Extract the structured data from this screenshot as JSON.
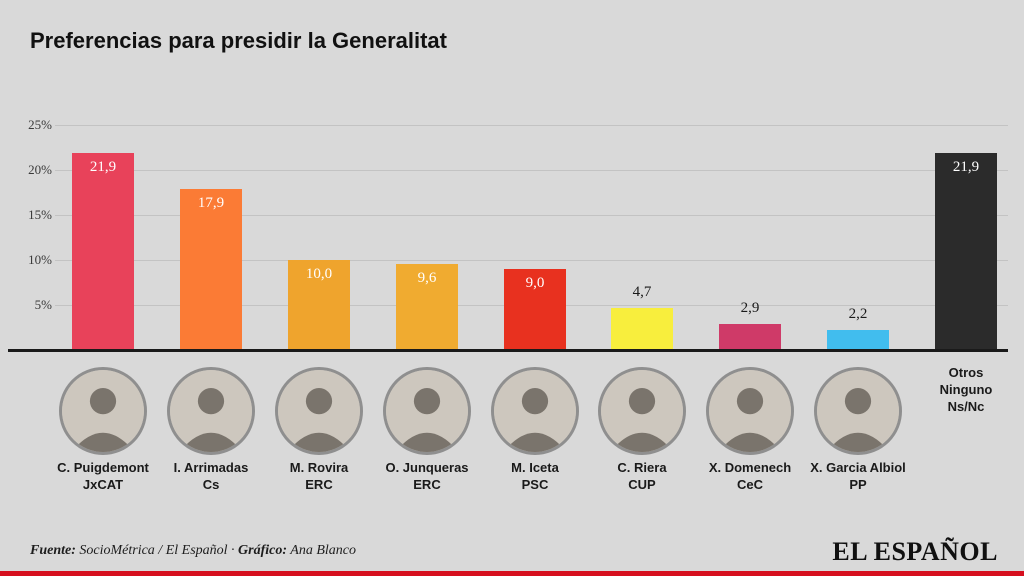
{
  "title": "Preferencias para presidir la Generalitat",
  "footer": {
    "source_label": "Fuente:",
    "source_rest": " SocioMétrica / El Español · ",
    "credit_label": "Gráfico:",
    "credit_rest": " Ana Blanco",
    "logo": "EL ESPAÑOL"
  },
  "colors": {
    "background": "#d9d9d9",
    "gridline": "#c3c3c3",
    "axis_line": "#1a1a1a",
    "value_label_light": "#ffffff",
    "value_label_dark": "#1a1a1a",
    "accent_red_strip": "#d60f1e",
    "avatar_ring": "#8f8f8f"
  },
  "chart_data": {
    "type": "bar",
    "title": "Preferencias para presidir la Generalitat",
    "xlabel": "",
    "ylabel": "",
    "ylim": [
      0,
      25
    ],
    "yticks": [
      5,
      10,
      15,
      20,
      25
    ],
    "ytick_labels": [
      "5%",
      "10%",
      "15%",
      "20%",
      "25%"
    ],
    "grid": true,
    "legend": false,
    "categories": [
      "C. Puigdemont JxCAT",
      "I. Arrimadas Cs",
      "M. Rovira ERC",
      "O. Junqueras ERC",
      "M. Iceta PSC",
      "C. Riera CUP",
      "X. Domenech CeC",
      "X. Garcia Albiol PP",
      "Otros Ninguno Ns/Nc"
    ],
    "values": [
      21.9,
      17.9,
      10.0,
      9.6,
      9.0,
      4.7,
      2.9,
      2.2,
      21.9
    ],
    "items": [
      {
        "name": "C. Puigdemont",
        "party": "JxCAT",
        "value": 21.9,
        "label": "21,9",
        "color": "#e8425a",
        "label_inside": true,
        "has_photo": true
      },
      {
        "name": "I. Arrimadas",
        "party": "Cs",
        "value": 17.9,
        "label": "17,9",
        "color": "#fb7b35",
        "label_inside": true,
        "has_photo": true
      },
      {
        "name": "M. Rovira",
        "party": "ERC",
        "value": 10.0,
        "label": "10,0",
        "color": "#efa42d",
        "label_inside": true,
        "has_photo": true
      },
      {
        "name": "O. Junqueras",
        "party": "ERC",
        "value": 9.6,
        "label": "9,6",
        "color": "#f0ab30",
        "label_inside": true,
        "has_photo": true
      },
      {
        "name": "M. Iceta",
        "party": "PSC",
        "value": 9.0,
        "label": "9,0",
        "color": "#e8311f",
        "label_inside": true,
        "has_photo": true
      },
      {
        "name": "C. Riera",
        "party": "CUP",
        "value": 4.7,
        "label": "4,7",
        "color": "#f8ee3d",
        "label_inside": false,
        "has_photo": true
      },
      {
        "name": "X. Domenech",
        "party": "CeC",
        "value": 2.9,
        "label": "2,9",
        "color": "#cf3a68",
        "label_inside": false,
        "has_photo": true
      },
      {
        "name": "X. Garcia Albiol",
        "party": "PP",
        "value": 2.2,
        "label": "2,2",
        "color": "#41bdee",
        "label_inside": false,
        "has_photo": true
      },
      {
        "name": "Otros",
        "lines": [
          "Otros",
          "Ninguno",
          "Ns/Nc"
        ],
        "value": 21.9,
        "label": "21,9",
        "color": "#2b2b2b",
        "label_inside": true,
        "has_photo": false
      }
    ]
  }
}
